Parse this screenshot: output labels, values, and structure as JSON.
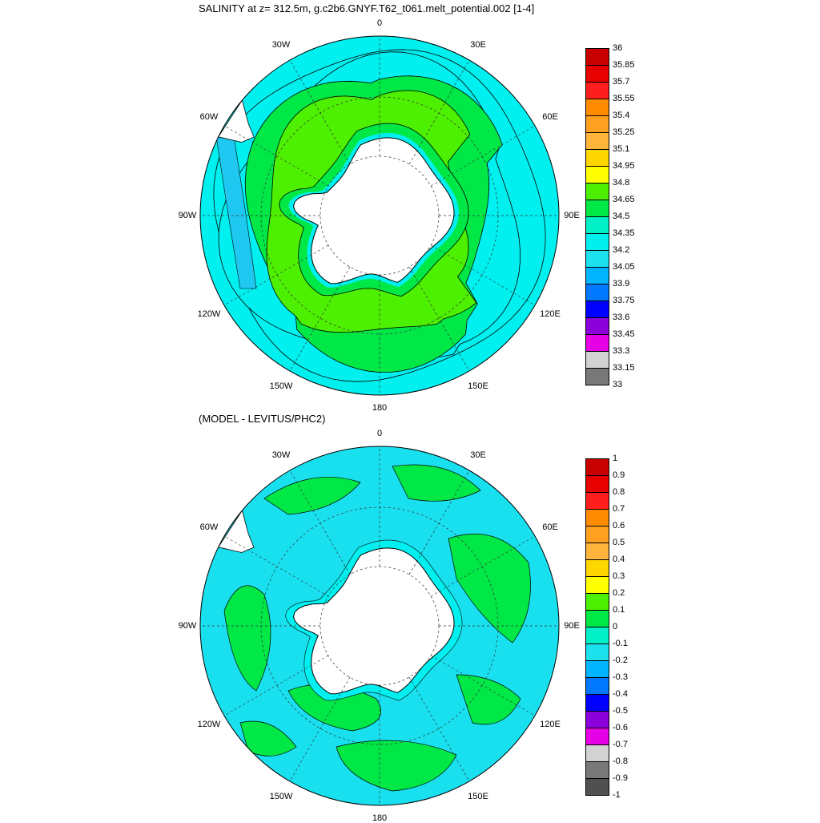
{
  "titles": {
    "top": "SALINITY at z= 312.5m, g.c2b6.GNYF.T62_t061.melt_potential.002 [1-4]",
    "bottom": "(MODEL - LEVITUS/PHC2)"
  },
  "lon_labels": [
    "0",
    "30E",
    "60E",
    "90E",
    "120E",
    "150E",
    "180",
    "150W",
    "120W",
    "90W",
    "60W",
    "30W"
  ],
  "colors": {
    "land": "#ffffff",
    "ocean_cyan": "#00f0f0",
    "ocean_light_cyan": "#19e0ef",
    "green": "#00e846",
    "bright_green": "#4cf000",
    "blue_band": "#1fc8f0",
    "dark_contour": "#000000"
  },
  "top_colorbar": {
    "labels": [
      "36",
      "35.85",
      "35.7",
      "35.55",
      "35.4",
      "35.25",
      "35.1",
      "34.95",
      "34.8",
      "34.65",
      "34.5",
      "34.35",
      "34.2",
      "34.05",
      "33.9",
      "33.75",
      "33.6",
      "33.45",
      "33.3",
      "33.15",
      "33"
    ],
    "colors": [
      "#c80000",
      "#e60000",
      "#ff1e1e",
      "#ff8c00",
      "#ffa020",
      "#ffb43c",
      "#ffd700",
      "#ffff00",
      "#4cf000",
      "#00e846",
      "#00f0c8",
      "#00f0f0",
      "#1ee1f0",
      "#00b4ff",
      "#0078ff",
      "#0000ff",
      "#8c00dc",
      "#e600e6",
      "#d2d2d2",
      "#787878"
    ]
  },
  "bottom_colorbar": {
    "labels": [
      "1",
      "0.9",
      "0.8",
      "0.7",
      "0.6",
      "0.5",
      "0.4",
      "0.3",
      "0.2",
      "0.1",
      "0",
      "-0.1",
      "-0.2",
      "-0.3",
      "-0.4",
      "-0.5",
      "-0.6",
      "-0.7",
      "-0.8",
      "-0.9",
      "-1"
    ],
    "colors": [
      "#c80000",
      "#e60000",
      "#ff1e1e",
      "#ff8c00",
      "#ffa020",
      "#ffb43c",
      "#ffd700",
      "#ffff00",
      "#4cf000",
      "#00e846",
      "#00f0c8",
      "#1ee1f0",
      "#00b4ff",
      "#0078ff",
      "#0000ff",
      "#8c00dc",
      "#e600e6",
      "#d2d2d2",
      "#787878",
      "#505050"
    ]
  }
}
